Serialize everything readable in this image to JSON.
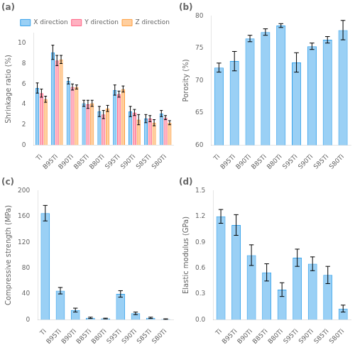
{
  "chart_data": [
    {
      "type": "bar",
      "title": "(a)",
      "ylabel": "Shrinkage ratio (%)",
      "categories": [
        "Ti",
        "B95Ti",
        "B90Ti",
        "B85Ti",
        "B80Ti",
        "S95Ti",
        "S90Ti",
        "S85Ti",
        "S80Ti"
      ],
      "series": [
        {
          "name": "X direction",
          "values": [
            5.6,
            9.1,
            6.3,
            4.1,
            3.3,
            5.4,
            3.3,
            2.6,
            3.1
          ],
          "errors": [
            0.5,
            0.7,
            0.3,
            0.3,
            0.5,
            0.5,
            0.5,
            0.4,
            0.3
          ]
        },
        {
          "name": "Y direction",
          "values": [
            5.1,
            8.3,
            5.7,
            4.0,
            3.0,
            5.0,
            3.2,
            2.6,
            2.7
          ],
          "errors": [
            0.4,
            0.5,
            0.3,
            0.4,
            0.4,
            0.3,
            0.3,
            0.3,
            0.2
          ]
        },
        {
          "name": "Z direction",
          "values": [
            4.5,
            8.4,
            5.7,
            4.1,
            3.6,
            5.5,
            2.5,
            2.2,
            2.2
          ],
          "errors": [
            0.3,
            0.4,
            0.2,
            0.3,
            0.3,
            0.3,
            0.5,
            0.3,
            0.2
          ]
        }
      ],
      "ylim": [
        0,
        11
      ],
      "yticks": [
        0,
        2,
        4,
        6,
        8,
        10
      ],
      "grid": false,
      "legend": "upper right"
    },
    {
      "type": "bar",
      "title": "(b)",
      "ylabel": "Porosity (%)",
      "categories": [
        "Ti",
        "B95Ti",
        "B90Ti",
        "B85Ti",
        "B80Ti",
        "S95Ti",
        "S90Ti",
        "S85Ti",
        "S80Ti"
      ],
      "values": [
        72.0,
        73.0,
        76.5,
        77.5,
        78.5,
        72.8,
        75.3,
        76.3,
        77.8
      ],
      "errors": [
        0.7,
        1.5,
        0.5,
        0.5,
        0.3,
        1.5,
        0.5,
        0.5,
        1.5
      ],
      "ylim": [
        60,
        80
      ],
      "yticks": [
        60,
        65,
        70,
        75,
        80
      ],
      "grid": false
    },
    {
      "type": "bar",
      "title": "(c)",
      "ylabel": "Compressive strength (MPa)",
      "categories": [
        "Ti",
        "B95Ti",
        "B90Ti",
        "B85Ti",
        "B80Ti",
        "S95Ti",
        "S90Ti",
        "S85Ti",
        "S80Ti"
      ],
      "values": [
        165,
        45,
        15,
        3,
        2,
        40,
        10,
        3,
        1
      ],
      "errors": [
        12,
        5,
        3,
        1,
        0.5,
        5,
        2,
        1,
        0.5
      ],
      "ylim": [
        0,
        200
      ],
      "yticks": [
        0,
        40,
        80,
        120,
        160,
        200
      ],
      "grid": false
    },
    {
      "type": "bar",
      "title": "(d)",
      "ylabel": "Elastic modulus (GPa)",
      "categories": [
        "Ti",
        "B95Ti",
        "B90Ti",
        "B85Ti",
        "B80Ti",
        "S95Ti",
        "S90Ti",
        "S85Ti",
        "S80Ti"
      ],
      "values": [
        1.2,
        1.1,
        0.75,
        0.55,
        0.35,
        0.72,
        0.65,
        0.52,
        0.13
      ],
      "errors": [
        0.08,
        0.12,
        0.12,
        0.1,
        0.08,
        0.1,
        0.08,
        0.1,
        0.04
      ],
      "ylim": [
        0,
        1.5
      ],
      "yticks": [
        {
          "value": 0,
          "label": "0.0"
        },
        0.3,
        0.6,
        0.9,
        1.2,
        1.5
      ],
      "grid": false
    }
  ]
}
